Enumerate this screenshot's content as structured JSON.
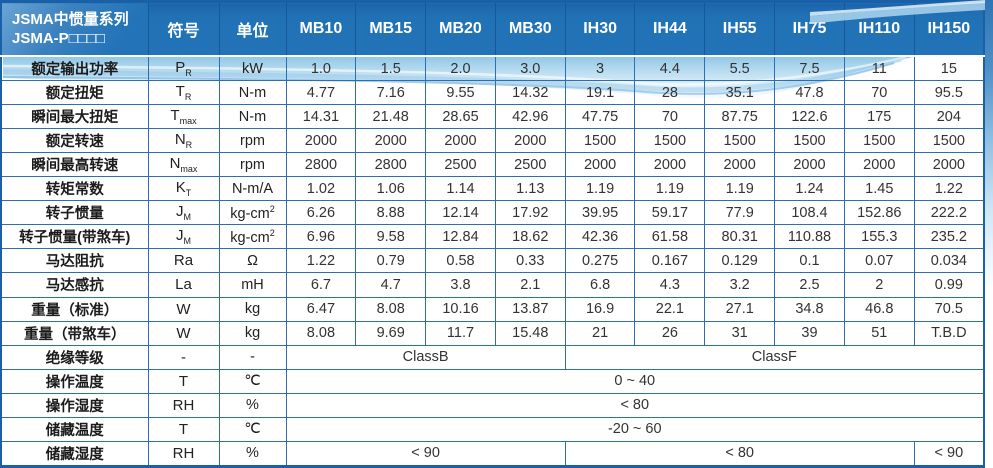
{
  "header": {
    "title_line1": "JSMA中惯量系列",
    "title_line2": "JSMA-P□□□□",
    "col_symbol": "符号",
    "col_unit": "单位",
    "models": [
      "MB10",
      "MB15",
      "MB20",
      "MB30",
      "IH30",
      "IH44",
      "IH55",
      "IH75",
      "IH110",
      "IH150"
    ]
  },
  "rows": [
    {
      "label": "额定输出功率",
      "sym": "P",
      "sub": "R",
      "unit": "kW",
      "cells": [
        "1.0",
        "1.5",
        "2.0",
        "3.0",
        "3",
        "4.4",
        "5.5",
        "7.5",
        "11",
        "15"
      ]
    },
    {
      "label": "额定扭矩",
      "sym": "T",
      "sub": "R",
      "unit": "N-m",
      "cells": [
        "4.77",
        "7.16",
        "9.55",
        "14.32",
        "19.1",
        "28",
        "35.1",
        "47.8",
        "70",
        "95.5"
      ]
    },
    {
      "label": "瞬间最大扭矩",
      "sym": "T",
      "sub": "max",
      "unit": "N-m",
      "cells": [
        "14.31",
        "21.48",
        "28.65",
        "42.96",
        "47.75",
        "70",
        "87.75",
        "122.6",
        "175",
        "204"
      ]
    },
    {
      "label": "额定转速",
      "sym": "N",
      "sub": "R",
      "unit": "rpm",
      "cells": [
        "2000",
        "2000",
        "2000",
        "2000",
        "1500",
        "1500",
        "1500",
        "1500",
        "1500",
        "1500"
      ]
    },
    {
      "label": "瞬间最高转速",
      "sym": "N",
      "sub": "max",
      "unit": "rpm",
      "cells": [
        "2800",
        "2800",
        "2500",
        "2500",
        "2000",
        "2000",
        "2000",
        "2000",
        "2000",
        "2000"
      ]
    },
    {
      "label": "转矩常数",
      "sym": "K",
      "sub": "T",
      "unit": "N-m/A",
      "cells": [
        "1.02",
        "1.06",
        "1.14",
        "1.13",
        "1.19",
        "1.19",
        "1.19",
        "1.24",
        "1.45",
        "1.22"
      ]
    },
    {
      "label": "转子惯量",
      "sym": "J",
      "sub": "M",
      "unit": "kg-cm",
      "unit_sup": "2",
      "cells": [
        "6.26",
        "8.88",
        "12.14",
        "17.92",
        "39.95",
        "59.17",
        "77.9",
        "108.4",
        "152.86",
        "222.2"
      ]
    },
    {
      "label": "转子惯量(带煞车)",
      "sym": "J",
      "sub": "M",
      "unit": "kg-cm",
      "unit_sup": "2",
      "cells": [
        "6.96",
        "9.58",
        "12.84",
        "18.62",
        "42.36",
        "61.58",
        "80.31",
        "110.88",
        "155.3",
        "235.2"
      ]
    },
    {
      "label": "马达阻抗",
      "sym": "Ra",
      "unit": "Ω",
      "cells": [
        "1.22",
        "0.79",
        "0.58",
        "0.33",
        "0.275",
        "0.167",
        "0.129",
        "0.1",
        "0.07",
        "0.034"
      ]
    },
    {
      "label": "马达感抗",
      "sym": "La",
      "unit": "mH",
      "cells": [
        "6.7",
        "4.7",
        "3.8",
        "2.1",
        "6.8",
        "4.3",
        "3.2",
        "2.5",
        "2",
        "0.99"
      ]
    },
    {
      "label": "重量（标准）",
      "sym": "W",
      "unit": "kg",
      "cells": [
        "6.47",
        "8.08",
        "10.16",
        "13.87",
        "16.9",
        "22.1",
        "27.1",
        "34.8",
        "46.8",
        "70.5"
      ]
    },
    {
      "label": "重量（带煞车）",
      "sym": "W",
      "unit": "kg",
      "cells": [
        "8.08",
        "9.69",
        "11.7",
        "15.48",
        "21",
        "26",
        "31",
        "39",
        "51",
        "T.B.D"
      ]
    },
    {
      "label": "绝缘等级",
      "sym": "-",
      "unit": "-",
      "cells": [
        {
          "t": "ClassB",
          "s": 4
        },
        {
          "t": "ClassF",
          "s": 6
        }
      ]
    },
    {
      "label": "操作温度",
      "sym": "T",
      "unit": "℃",
      "cells": [
        {
          "t": "0 ~ 40",
          "s": 10
        }
      ]
    },
    {
      "label": "操作湿度",
      "sym": "RH",
      "unit": "%",
      "cells": [
        {
          "t": "< 80",
          "s": 10
        }
      ]
    },
    {
      "label": "储藏温度",
      "sym": "T",
      "unit": "℃",
      "cells": [
        {
          "t": "-20 ~ 60",
          "s": 10
        }
      ]
    },
    {
      "label": "储藏湿度",
      "sym": "RH",
      "unit": "%",
      "cells": [
        {
          "t": "< 90",
          "s": 4
        },
        {
          "t": "< 80",
          "s": 5
        },
        {
          "t": "< 90",
          "s": 1
        }
      ]
    }
  ],
  "colors": {
    "header_blue": "#2273b8",
    "header_blue_dark": "#1d64ab",
    "grid_blue": "#2b6fb0",
    "outer_border_blue": "#1a60a9",
    "swoosh_light_blue": "#aed7ee",
    "text_dark": "#222222"
  }
}
